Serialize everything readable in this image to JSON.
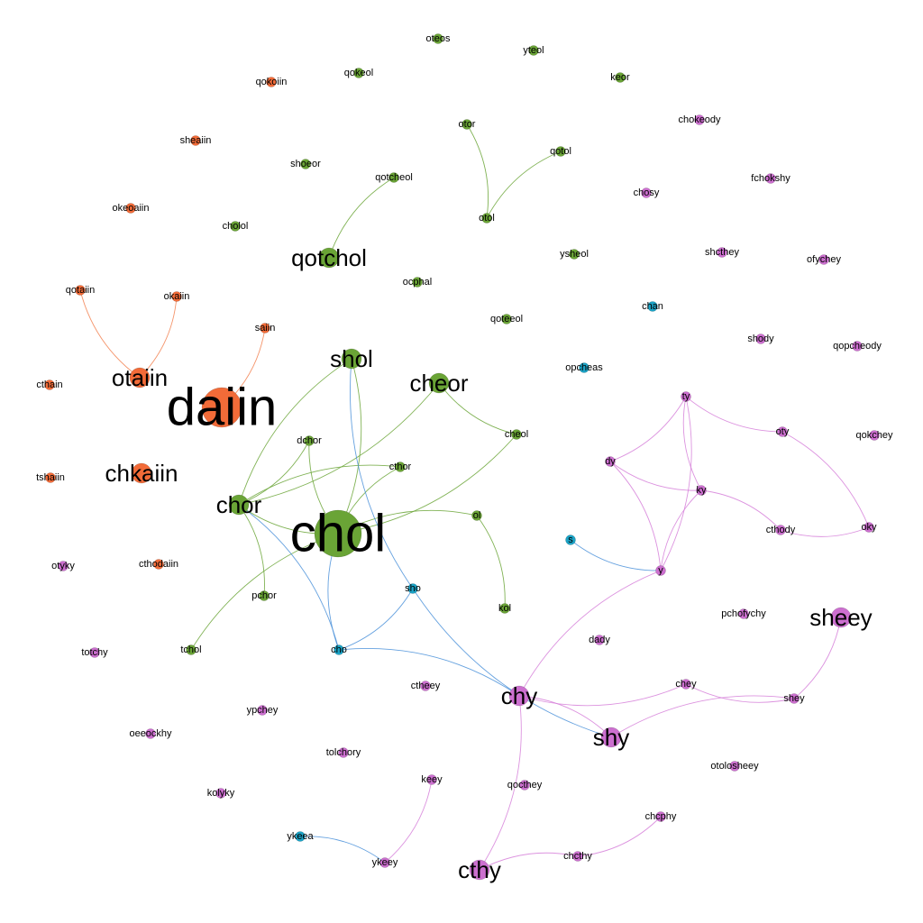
{
  "colors": {
    "orange": "#f26b38",
    "green": "#6aa436",
    "magenta": "#cc6fcf",
    "blue": "#1ba3c6",
    "edge_orange": "#f2804f",
    "edge_green": "#6aa436",
    "edge_magenta": "#d680d9",
    "edge_blue": "#4a90d9"
  },
  "nodes": [
    {
      "id": "daiin",
      "label": "daiin",
      "group": "orange",
      "weight": 5
    },
    {
      "id": "otaiin",
      "label": "otaiin",
      "group": "orange",
      "weight": 3
    },
    {
      "id": "chkaiin",
      "label": "chkaiin",
      "group": "orange",
      "weight": 3
    },
    {
      "id": "qokoiin",
      "label": "qokoiin",
      "group": "orange",
      "weight": 1
    },
    {
      "id": "sheaiin",
      "label": "sheaiin",
      "group": "orange",
      "weight": 1
    },
    {
      "id": "okeoaiin",
      "label": "okeoaiin",
      "group": "orange",
      "weight": 1
    },
    {
      "id": "qotaiin",
      "label": "qotaiin",
      "group": "orange",
      "weight": 1
    },
    {
      "id": "okaiin",
      "label": "okaiin",
      "group": "orange",
      "weight": 1
    },
    {
      "id": "saiin",
      "label": "saiin",
      "group": "orange",
      "weight": 1
    },
    {
      "id": "cthain",
      "label": "cthain",
      "group": "orange",
      "weight": 1
    },
    {
      "id": "tshaiin",
      "label": "tshaiin",
      "group": "orange",
      "weight": 1
    },
    {
      "id": "cthodaiin",
      "label": "cthodaiin",
      "group": "orange",
      "weight": 1
    },
    {
      "id": "chol",
      "label": "chol",
      "group": "green",
      "weight": 5
    },
    {
      "id": "qotchol",
      "label": "qotchol",
      "group": "green",
      "weight": 3
    },
    {
      "id": "shol",
      "label": "shol",
      "group": "green",
      "weight": 3
    },
    {
      "id": "cheor",
      "label": "cheor",
      "group": "green",
      "weight": 3
    },
    {
      "id": "chor",
      "label": "chor",
      "group": "green",
      "weight": 3
    },
    {
      "id": "oteos",
      "label": "oteos",
      "group": "green",
      "weight": 1
    },
    {
      "id": "yteol",
      "label": "yteol",
      "group": "green",
      "weight": 1
    },
    {
      "id": "qokeol",
      "label": "qokeol",
      "group": "green",
      "weight": 1
    },
    {
      "id": "keor",
      "label": "keor",
      "group": "green",
      "weight": 1
    },
    {
      "id": "otor",
      "label": "otor",
      "group": "green",
      "weight": 1
    },
    {
      "id": "qotol",
      "label": "qotol",
      "group": "green",
      "weight": 1
    },
    {
      "id": "shoeor",
      "label": "shoeor",
      "group": "green",
      "weight": 1
    },
    {
      "id": "qotcheol",
      "label": "qotcheol",
      "group": "green",
      "weight": 1
    },
    {
      "id": "otol",
      "label": "otol",
      "group": "green",
      "weight": 1
    },
    {
      "id": "cholol",
      "label": "cholol",
      "group": "green",
      "weight": 1
    },
    {
      "id": "ysheol",
      "label": "ysheol",
      "group": "green",
      "weight": 1
    },
    {
      "id": "ocphal",
      "label": "ocphal",
      "group": "green",
      "weight": 1
    },
    {
      "id": "qoteeol",
      "label": "qoteeol",
      "group": "green",
      "weight": 1
    },
    {
      "id": "dchor",
      "label": "dchor",
      "group": "green",
      "weight": 1
    },
    {
      "id": "cheol",
      "label": "cheol",
      "group": "green",
      "weight": 1
    },
    {
      "id": "cthor",
      "label": "cthor",
      "group": "green",
      "weight": 1
    },
    {
      "id": "ol",
      "label": "ol",
      "group": "green",
      "weight": 1
    },
    {
      "id": "pchor",
      "label": "pchor",
      "group": "green",
      "weight": 1
    },
    {
      "id": "kol",
      "label": "kol",
      "group": "green",
      "weight": 1
    },
    {
      "id": "tchol",
      "label": "tchol",
      "group": "green",
      "weight": 1
    },
    {
      "id": "chan",
      "label": "chan",
      "group": "blue",
      "weight": 1
    },
    {
      "id": "opcheas",
      "label": "opcheas",
      "group": "blue",
      "weight": 1
    },
    {
      "id": "s",
      "label": "s",
      "group": "blue",
      "weight": 1
    },
    {
      "id": "sho",
      "label": "sho",
      "group": "blue",
      "weight": 1
    },
    {
      "id": "cho",
      "label": "cho",
      "group": "blue",
      "weight": 1
    },
    {
      "id": "ykeea",
      "label": "ykeea",
      "group": "blue",
      "weight": 1
    },
    {
      "id": "chokeody",
      "label": "chokeody",
      "group": "magenta",
      "weight": 1
    },
    {
      "id": "fchokshy",
      "label": "fchokshy",
      "group": "magenta",
      "weight": 1
    },
    {
      "id": "chosy",
      "label": "chosy",
      "group": "magenta",
      "weight": 1
    },
    {
      "id": "shcthey",
      "label": "shcthey",
      "group": "magenta",
      "weight": 1
    },
    {
      "id": "ofychey",
      "label": "ofychey",
      "group": "magenta",
      "weight": 1
    },
    {
      "id": "shody",
      "label": "shody",
      "group": "magenta",
      "weight": 1
    },
    {
      "id": "qopcheody",
      "label": "qopcheody",
      "group": "magenta",
      "weight": 1
    },
    {
      "id": "ty",
      "label": "ty",
      "group": "magenta",
      "weight": 1
    },
    {
      "id": "oty",
      "label": "oty",
      "group": "magenta",
      "weight": 1
    },
    {
      "id": "qokchey",
      "label": "qokchey",
      "group": "magenta",
      "weight": 1
    },
    {
      "id": "dy",
      "label": "dy",
      "group": "magenta",
      "weight": 1
    },
    {
      "id": "ky",
      "label": "ky",
      "group": "magenta",
      "weight": 1
    },
    {
      "id": "cthody",
      "label": "cthody",
      "group": "magenta",
      "weight": 1
    },
    {
      "id": "oky",
      "label": "oky",
      "group": "magenta",
      "weight": 1
    },
    {
      "id": "y",
      "label": "y",
      "group": "magenta",
      "weight": 1
    },
    {
      "id": "pchofychy",
      "label": "pchofychy",
      "group": "magenta",
      "weight": 1
    },
    {
      "id": "sheey",
      "label": "sheey",
      "group": "magenta",
      "weight": 3
    },
    {
      "id": "dady",
      "label": "dady",
      "group": "magenta",
      "weight": 1
    },
    {
      "id": "chey",
      "label": "chey",
      "group": "magenta",
      "weight": 1
    },
    {
      "id": "shey",
      "label": "shey",
      "group": "magenta",
      "weight": 1
    },
    {
      "id": "chy",
      "label": "chy",
      "group": "magenta",
      "weight": 3
    },
    {
      "id": "shy",
      "label": "shy",
      "group": "magenta",
      "weight": 3
    },
    {
      "id": "ctheey",
      "label": "ctheey",
      "group": "magenta",
      "weight": 1
    },
    {
      "id": "otolosheey",
      "label": "otolosheey",
      "group": "magenta",
      "weight": 1
    },
    {
      "id": "qocthey",
      "label": "qocthey",
      "group": "magenta",
      "weight": 1
    },
    {
      "id": "keey",
      "label": "keey",
      "group": "magenta",
      "weight": 1
    },
    {
      "id": "chcphy",
      "label": "chcphy",
      "group": "magenta",
      "weight": 1
    },
    {
      "id": "chcthy",
      "label": "chcthy",
      "group": "magenta",
      "weight": 1
    },
    {
      "id": "ykeey",
      "label": "ykeey",
      "group": "magenta",
      "weight": 1
    },
    {
      "id": "cthy",
      "label": "cthy",
      "group": "magenta",
      "weight": 3
    },
    {
      "id": "otyky",
      "label": "otyky",
      "group": "magenta",
      "weight": 1
    },
    {
      "id": "totchy",
      "label": "totchy",
      "group": "magenta",
      "weight": 1
    },
    {
      "id": "ypchey",
      "label": "ypchey",
      "group": "magenta",
      "weight": 1
    },
    {
      "id": "oeeockhy",
      "label": "oeeockhy",
      "group": "magenta",
      "weight": 1
    },
    {
      "id": "tolchory",
      "label": "tolchory",
      "group": "magenta",
      "weight": 1
    },
    {
      "id": "kolyky",
      "label": "kolyky",
      "group": "magenta",
      "weight": 1
    }
  ],
  "edges": [
    {
      "source": "daiin",
      "target": "saiin",
      "color": "edge_orange"
    },
    {
      "source": "otaiin",
      "target": "qotaiin",
      "color": "edge_orange"
    },
    {
      "source": "otaiin",
      "target": "okaiin",
      "color": "edge_orange"
    },
    {
      "source": "qotchol",
      "target": "qotcheol",
      "color": "edge_green"
    },
    {
      "source": "otol",
      "target": "otor",
      "color": "edge_green"
    },
    {
      "source": "otol",
      "target": "qotol",
      "color": "edge_green"
    },
    {
      "source": "chol",
      "target": "shol",
      "color": "edge_green"
    },
    {
      "source": "chol",
      "target": "cthor",
      "color": "edge_green"
    },
    {
      "source": "chol",
      "target": "cheol",
      "color": "edge_green"
    },
    {
      "source": "chol",
      "target": "ol",
      "color": "edge_green"
    },
    {
      "source": "chol",
      "target": "tchol",
      "color": "edge_green"
    },
    {
      "source": "chol",
      "target": "dchor",
      "color": "edge_green"
    },
    {
      "source": "chor",
      "target": "cheor",
      "color": "edge_green"
    },
    {
      "source": "chor",
      "target": "shol",
      "color": "edge_green"
    },
    {
      "source": "chor",
      "target": "dchor",
      "color": "edge_green"
    },
    {
      "source": "chor",
      "target": "cthor",
      "color": "edge_green"
    },
    {
      "source": "chor",
      "target": "chol",
      "color": "edge_green"
    },
    {
      "source": "chor",
      "target": "pchor",
      "color": "edge_green"
    },
    {
      "source": "cheor",
      "target": "cheol",
      "color": "edge_green"
    },
    {
      "source": "ol",
      "target": "kol",
      "color": "edge_green"
    },
    {
      "source": "shol",
      "target": "sho",
      "color": "edge_blue"
    },
    {
      "source": "chor",
      "target": "cho",
      "color": "edge_blue"
    },
    {
      "source": "chol",
      "target": "cho",
      "color": "edge_blue"
    },
    {
      "source": "sho",
      "target": "cho",
      "color": "edge_blue"
    },
    {
      "source": "sho",
      "target": "shy",
      "color": "edge_blue"
    },
    {
      "source": "cho",
      "target": "chy",
      "color": "edge_blue"
    },
    {
      "source": "s",
      "target": "y",
      "color": "edge_blue"
    },
    {
      "source": "ykeea",
      "target": "ykeey",
      "color": "edge_blue"
    },
    {
      "source": "ty",
      "target": "oty",
      "color": "edge_magenta"
    },
    {
      "source": "ty",
      "target": "dy",
      "color": "edge_magenta"
    },
    {
      "source": "ty",
      "target": "ky",
      "color": "edge_magenta"
    },
    {
      "source": "ty",
      "target": "y",
      "color": "edge_magenta"
    },
    {
      "source": "dy",
      "target": "ky",
      "color": "edge_magenta"
    },
    {
      "source": "dy",
      "target": "y",
      "color": "edge_magenta"
    },
    {
      "source": "ky",
      "target": "y",
      "color": "edge_magenta"
    },
    {
      "source": "ky",
      "target": "cthody",
      "color": "edge_magenta"
    },
    {
      "source": "cthody",
      "target": "oky",
      "color": "edge_magenta"
    },
    {
      "source": "oty",
      "target": "oky",
      "color": "edge_magenta"
    },
    {
      "source": "y",
      "target": "chy",
      "color": "edge_magenta"
    },
    {
      "source": "chy",
      "target": "shy",
      "color": "edge_magenta"
    },
    {
      "source": "chy",
      "target": "chey",
      "color": "edge_magenta"
    },
    {
      "source": "chy",
      "target": "cthy",
      "color": "edge_magenta"
    },
    {
      "source": "chey",
      "target": "shey",
      "color": "edge_magenta"
    },
    {
      "source": "shy",
      "target": "shey",
      "color": "edge_magenta"
    },
    {
      "source": "shey",
      "target": "sheey",
      "color": "edge_magenta"
    },
    {
      "source": "cthy",
      "target": "chcthy",
      "color": "edge_magenta"
    },
    {
      "source": "chcthy",
      "target": "chcphy",
      "color": "edge_magenta"
    },
    {
      "source": "keey",
      "target": "ykeey",
      "color": "edge_magenta"
    }
  ]
}
